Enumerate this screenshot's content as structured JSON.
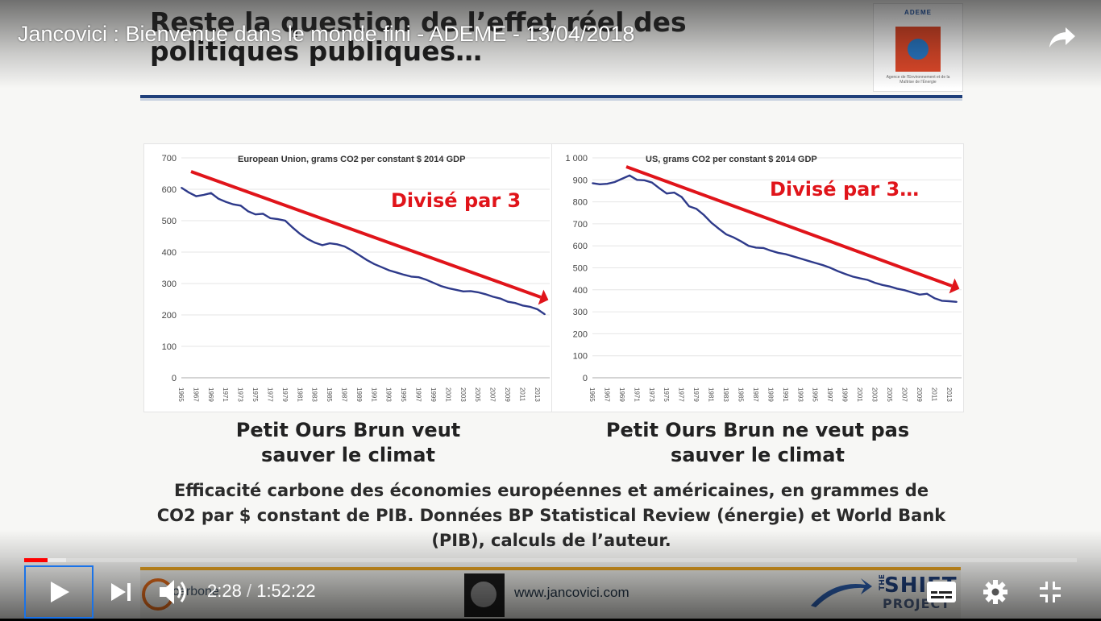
{
  "video": {
    "title": "Jancovici : Bienvenue dans le monde fini - ADEME - 13/04/2018",
    "time_current": "2:28",
    "time_separator": "/",
    "time_total": "1:52:22",
    "progress_fraction": 0.022,
    "buffered_fraction": 0.04,
    "accent_color": "#ff0000"
  },
  "controls": {
    "share_icon": "share-icon",
    "play_icon": "play-icon",
    "next_icon": "next-icon",
    "volume_icon": "volume-icon",
    "subtitles_icon": "subtitles-icon",
    "settings_icon": "gear-icon",
    "fullscreen_icon": "exit-fullscreen-icon"
  },
  "slide": {
    "title_line1": "Reste la question de l’effet réel des",
    "title_line2": "politiques publiques…",
    "logo_brand": "ADEME",
    "logo_small": "Agence de l'Environnement et de la Maîtrise de l'Énergie",
    "caption_left_1": "Petit Ours Brun veut",
    "caption_left_2": "sauver le climat",
    "caption_right_1": "Petit Ours Brun ne veut pas",
    "caption_right_2": "sauver le climat",
    "footnote_1": "Efficacité carbone des économies européennes et américaines, en grammes de",
    "footnote_2": "CO2 par $ constant de PIB. Données BP Statistical Review (énergie) et World Bank",
    "footnote_3": "(PIB), calculs de l’auteur.",
    "footer_url": "www.jancovici.com",
    "footer_left": "carbone",
    "footer_shift_the": "THE",
    "footer_shift_big": "SHIFT",
    "footer_shift_project": "PROJECT",
    "arrow_color": "#e0141a",
    "line_color": "#2e3a8a"
  },
  "chart_data": [
    {
      "type": "line",
      "title": "European Union, grams CO2 per constant $ 2014 GDP",
      "annotation": "Divisé par 3",
      "ylim": [
        0,
        700
      ],
      "yticks": [
        "0",
        "100",
        "200",
        "300",
        "400",
        "500",
        "600",
        "700"
      ],
      "xticks": [
        "1965",
        "1967",
        "1969",
        "1971",
        "1973",
        "1975",
        "1977",
        "1979",
        "1981",
        "1983",
        "1985",
        "1987",
        "1989",
        "1991",
        "1993",
        "1995",
        "1997",
        "1999",
        "2001",
        "2003",
        "2005",
        "2007",
        "2009",
        "2011",
        "2013"
      ],
      "x": [
        1965,
        1966,
        1967,
        1968,
        1969,
        1970,
        1971,
        1972,
        1973,
        1974,
        1975,
        1976,
        1977,
        1978,
        1979,
        1980,
        1981,
        1982,
        1983,
        1984,
        1985,
        1986,
        1987,
        1988,
        1989,
        1990,
        1991,
        1992,
        1993,
        1994,
        1995,
        1996,
        1997,
        1998,
        1999,
        2000,
        2001,
        2002,
        2003,
        2004,
        2005,
        2006,
        2007,
        2008,
        2009,
        2010,
        2011,
        2012,
        2013,
        2014
      ],
      "values": [
        605,
        590,
        578,
        582,
        588,
        570,
        560,
        552,
        548,
        530,
        520,
        522,
        508,
        505,
        500,
        478,
        458,
        442,
        430,
        422,
        428,
        425,
        418,
        405,
        390,
        375,
        362,
        352,
        342,
        335,
        328,
        322,
        320,
        312,
        302,
        292,
        285,
        280,
        275,
        276,
        272,
        266,
        258,
        252,
        242,
        238,
        230,
        226,
        218,
        202
      ],
      "grid": true
    },
    {
      "type": "line",
      "title": "US, grams CO2 per constant $ 2014 GDP",
      "annotation": "Divisé par 3…",
      "ylim": [
        0,
        1000
      ],
      "yticks": [
        "0",
        "100",
        "200",
        "300",
        "400",
        "500",
        "600",
        "700",
        "800",
        "900",
        "1 000"
      ],
      "xticks": [
        "1965",
        "1967",
        "1969",
        "1971",
        "1973",
        "1975",
        "1977",
        "1979",
        "1981",
        "1983",
        "1985",
        "1987",
        "1989",
        "1991",
        "1993",
        "1995",
        "1997",
        "1999",
        "2001",
        "2003",
        "2005",
        "2007",
        "2009",
        "2011",
        "2013"
      ],
      "x": [
        1965,
        1966,
        1967,
        1968,
        1969,
        1970,
        1971,
        1972,
        1973,
        1974,
        1975,
        1976,
        1977,
        1978,
        1979,
        1980,
        1981,
        1982,
        1983,
        1984,
        1985,
        1986,
        1987,
        1988,
        1989,
        1990,
        1991,
        1992,
        1993,
        1994,
        1995,
        1996,
        1997,
        1998,
        1999,
        2000,
        2001,
        2002,
        2003,
        2004,
        2005,
        2006,
        2007,
        2008,
        2009,
        2010,
        2011,
        2012,
        2013,
        2014
      ],
      "values": [
        885,
        880,
        882,
        890,
        905,
        920,
        900,
        898,
        888,
        862,
        838,
        842,
        822,
        780,
        768,
        740,
        705,
        678,
        652,
        638,
        620,
        600,
        592,
        590,
        578,
        568,
        562,
        552,
        542,
        532,
        522,
        512,
        500,
        485,
        472,
        460,
        452,
        445,
        432,
        422,
        415,
        405,
        398,
        388,
        378,
        382,
        362,
        350,
        348,
        345
      ],
      "grid": true
    }
  ]
}
